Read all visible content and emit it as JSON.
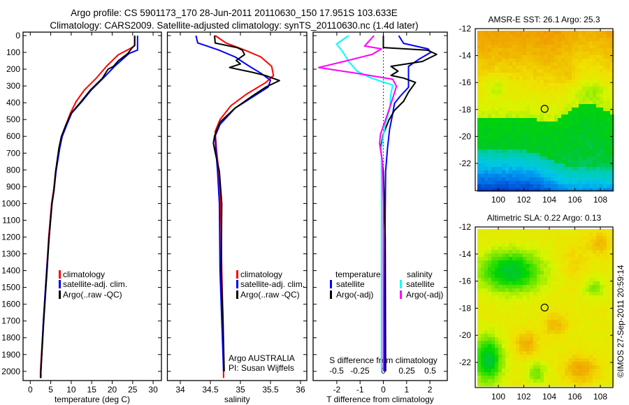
{
  "title": {
    "line1": "Argo profile: CS 5901173_170 28-Jun-2011 20110630_150 17.951S 103.633E",
    "line2": "Climatology: CARS2009. Satellite-adjusted climatology: synTS_20110630.nc (1.4d later)"
  },
  "footer": "©IMOS 27-Sep-2011 20:59:14",
  "colors": {
    "climatology": "#ff0000",
    "satellite": "#0000ff",
    "argo": "#000000",
    "sal_satellite": "#00ffff",
    "sal_argo": "#ff00ff"
  },
  "chart_data": [
    {
      "type": "line",
      "xlabel": "temperature (deg C)",
      "ylabel": "",
      "xlim": [
        -1.75,
        32.0
      ],
      "ylim": [
        2055,
        -20
      ],
      "xticks": [
        "0",
        "5",
        "10",
        "15",
        "20",
        "25",
        "30"
      ],
      "yticks": [
        "0",
        "100",
        "200",
        "300",
        "400",
        "500",
        "600",
        "700",
        "800",
        "900",
        "1000",
        "1100",
        "1200",
        "1300",
        "1400",
        "1500",
        "1600",
        "1700",
        "1800",
        "1900",
        "2000"
      ],
      "legend": [
        "climatology",
        "satellite-adj. clim.",
        "Argo(..raw -QC)"
      ],
      "series": [
        {
          "name": "climatology",
          "color": "#ff0000",
          "points": [
            [
              0,
              25.5
            ],
            [
              60,
              25.5
            ],
            [
              72,
              24.8
            ],
            [
              114,
              21.5
            ],
            [
              183,
              18.6
            ],
            [
              254,
              16.1
            ],
            [
              324,
              13.2
            ],
            [
              393,
              11.2
            ],
            [
              462,
              9.8
            ],
            [
              532,
              8.7
            ],
            [
              601,
              7.7
            ],
            [
              670,
              7.1
            ],
            [
              809,
              6.2
            ],
            [
              920,
              5.7
            ],
            [
              1000,
              5.2
            ],
            [
              1200,
              4.5
            ],
            [
              1400,
              4.0
            ],
            [
              1700,
              3.2
            ],
            [
              2000,
              2.5
            ],
            [
              2040,
              2.5
            ]
          ]
        },
        {
          "name": "satellite-adj. clim.",
          "color": "#0000ff",
          "points": [
            [
              0,
              26.2
            ],
            [
              86,
              26.2
            ],
            [
              107,
              24.1
            ],
            [
              183,
              20.6
            ],
            [
              254,
              17.8
            ],
            [
              324,
              14.9
            ],
            [
              393,
              12.6
            ],
            [
              462,
              10.1
            ],
            [
              532,
              8.9
            ],
            [
              601,
              7.8
            ],
            [
              670,
              7.2
            ],
            [
              809,
              6.3
            ],
            [
              920,
              5.8
            ],
            [
              1000,
              5.3
            ],
            [
              1200,
              4.6
            ],
            [
              1400,
              4.0
            ],
            [
              1700,
              3.2
            ],
            [
              2000,
              2.6
            ],
            [
              2040,
              2.5
            ]
          ]
        },
        {
          "name": "Argo(..raw -QC)",
          "color": "#000000",
          "points": [
            [
              0,
              25.5
            ],
            [
              58,
              25.5
            ],
            [
              72,
              24.9
            ],
            [
              107,
              23.8
            ],
            [
              150,
              21.5
            ],
            [
              183,
              20.3
            ],
            [
              200,
              19.0
            ],
            [
              254,
              17.6
            ],
            [
              324,
              14.7
            ],
            [
              393,
              12.4
            ],
            [
              462,
              10.0
            ],
            [
              532,
              8.7
            ],
            [
              601,
              7.6
            ],
            [
              670,
              7.0
            ],
            [
              809,
              6.2
            ],
            [
              920,
              5.8
            ],
            [
              1000,
              5.3
            ],
            [
              1200,
              4.6
            ],
            [
              1400,
              4.1
            ],
            [
              1700,
              3.3
            ],
            [
              2000,
              2.6
            ],
            [
              2040,
              2.6
            ]
          ]
        }
      ]
    },
    {
      "type": "line",
      "xlabel": "salinity",
      "xlim": [
        33.785,
        36.105
      ],
      "ylim": [
        2055,
        -20
      ],
      "xticks": [
        "34",
        "34.5",
        "35",
        "35.5",
        "36"
      ],
      "legend": [
        "climatology",
        "satellite-adj. clim.",
        "Argo(..raw -QC)"
      ],
      "annotation": [
        "Argo AUSTRALIA",
        "PI: Susan Wijffels"
      ],
      "series": [
        {
          "name": "climatology",
          "color": "#ff0000",
          "points": [
            [
              0,
              34.58
            ],
            [
              44,
              34.76
            ],
            [
              86,
              35.07
            ],
            [
              127,
              35.34
            ],
            [
              183,
              35.52
            ],
            [
              238,
              35.55
            ],
            [
              280,
              35.42
            ],
            [
              349,
              35.1
            ],
            [
              418,
              34.84
            ],
            [
              501,
              34.66
            ],
            [
              571,
              34.58
            ],
            [
              670,
              34.6
            ],
            [
              809,
              34.64
            ],
            [
              1000,
              34.67
            ],
            [
              1400,
              34.69
            ],
            [
              1700,
              34.71
            ],
            [
              2040,
              34.72
            ]
          ]
        },
        {
          "name": "satellite-adj. clim.",
          "color": "#0000ff",
          "points": [
            [
              0,
              34.26
            ],
            [
              44,
              34.29
            ],
            [
              58,
              34.41
            ],
            [
              86,
              34.64
            ],
            [
              127,
              34.91
            ],
            [
              183,
              35.15
            ],
            [
              224,
              35.34
            ],
            [
              266,
              35.5
            ],
            [
              307,
              35.46
            ],
            [
              362,
              35.22
            ],
            [
              432,
              34.91
            ],
            [
              529,
              34.66
            ],
            [
              598,
              34.58
            ],
            [
              670,
              34.59
            ],
            [
              809,
              34.62
            ],
            [
              1000,
              34.65
            ],
            [
              1400,
              34.66
            ],
            [
              1700,
              34.69
            ],
            [
              2000,
              34.72
            ]
          ]
        },
        {
          "name": "Argo(..raw -QC)",
          "color": "#000000",
          "points": [
            [
              0,
              34.57
            ],
            [
              44,
              34.58
            ],
            [
              72,
              34.95
            ],
            [
              86,
              35.03
            ],
            [
              113,
              35.07
            ],
            [
              148,
              34.93
            ],
            [
              169,
              35.0
            ],
            [
              190,
              34.82
            ],
            [
              218,
              35.19
            ],
            [
              238,
              35.42
            ],
            [
              268,
              35.65
            ],
            [
              307,
              35.42
            ],
            [
              362,
              35.19
            ],
            [
              432,
              34.91
            ],
            [
              515,
              34.66
            ],
            [
              598,
              34.57
            ],
            [
              640,
              34.55
            ],
            [
              696,
              34.58
            ],
            [
              809,
              34.65
            ],
            [
              1000,
              34.69
            ],
            [
              1400,
              34.68
            ],
            [
              1700,
              34.71
            ],
            [
              2000,
              34.73
            ]
          ]
        }
      ]
    },
    {
      "type": "line",
      "xlabel": "T difference from climatology",
      "xlabel2": "S difference from climatology",
      "xlim": [
        -3.02,
        2.75
      ],
      "xlim_s": [
        -0.75,
        0.69
      ],
      "ylim": [
        2055,
        -20
      ],
      "xticks": [
        "-2",
        "-1",
        "0",
        "1",
        "2"
      ],
      "xticks_s": [
        "-0.5",
        "-0.25",
        "0",
        "0.25",
        "0.5"
      ],
      "legend": {
        "temperature_header": "temperature",
        "salinity_header": "salinity",
        "t_sat": "satellite",
        "t_argo": "Argo(-adj)",
        "s_sat": "satellite",
        "s_argo": "Argo(-adj)"
      },
      "series": [
        {
          "name": "temperature satellite",
          "axis": "T",
          "color": "#0000ff",
          "points": [
            [
              0,
              0.66
            ],
            [
              46,
              0.87
            ],
            [
              79,
              1.92
            ],
            [
              100,
              2.04
            ],
            [
              141,
              1.53
            ],
            [
              183,
              1.08
            ],
            [
              253,
              1.08
            ],
            [
              308,
              1.08
            ],
            [
              362,
              0.72
            ],
            [
              403,
              0.48
            ],
            [
              474,
              0.39
            ],
            [
              557,
              0.27
            ],
            [
              669,
              0.18
            ],
            [
              807,
              0.1
            ],
            [
              1200,
              0.07
            ],
            [
              2000,
              0.05
            ]
          ]
        },
        {
          "name": "temperature Argo(-adj)",
          "axis": "T",
          "color": "#000000",
          "points": [
            [
              0,
              0.0
            ],
            [
              71,
              0.0
            ],
            [
              87,
              1.9
            ],
            [
              112,
              2.29
            ],
            [
              154,
              1.68
            ],
            [
              183,
              0.33
            ],
            [
              212,
              0.63
            ],
            [
              237,
              0.33
            ],
            [
              253,
              0.87
            ],
            [
              279,
              1.38
            ],
            [
              337,
              1.08
            ],
            [
              391,
              0.87
            ],
            [
              445,
              0.48
            ],
            [
              503,
              0.24
            ],
            [
              586,
              0.0
            ],
            [
              669,
              -0.12
            ],
            [
              807,
              0.0
            ],
            [
              1200,
              0.08
            ],
            [
              2000,
              0.1
            ]
          ]
        },
        {
          "name": "salinity satellite",
          "axis": "S",
          "color": "#00ffff",
          "points": [
            [
              0,
              -0.37
            ],
            [
              50,
              -0.5
            ],
            [
              100,
              -0.43
            ],
            [
              154,
              -0.37
            ],
            [
              212,
              -0.28
            ],
            [
              253,
              -0.13
            ],
            [
              295,
              0.1
            ],
            [
              350,
              0.08
            ],
            [
              433,
              0.07
            ],
            [
              530,
              0.02
            ],
            [
              669,
              -0.02
            ],
            [
              1000,
              -0.02
            ],
            [
              2000,
              -0.02
            ]
          ]
        },
        {
          "name": "salinity Argo(-adj)",
          "axis": "S",
          "color": "#ff00ff",
          "points": [
            [
              0,
              -0.1
            ],
            [
              62,
              -0.2
            ],
            [
              79,
              -0.02
            ],
            [
              112,
              -0.12
            ],
            [
              154,
              -0.42
            ],
            [
              190,
              -0.69
            ],
            [
              225,
              -0.28
            ],
            [
              260,
              0.1
            ],
            [
              302,
              0.14
            ],
            [
              391,
              0.09
            ],
            [
              474,
              0.04
            ],
            [
              586,
              -0.03
            ],
            [
              642,
              -0.04
            ],
            [
              752,
              -0.01
            ],
            [
              1000,
              0.0
            ],
            [
              2000,
              0.0
            ]
          ]
        }
      ]
    },
    {
      "type": "heatmap",
      "title": "AMSR-E SST: 26.1 Argo: 25.3",
      "xlim": [
        98.2,
        109.0
      ],
      "ylim": [
        -24.0,
        -12
      ],
      "xticks": [
        "100",
        "102",
        "104",
        "106",
        "108"
      ],
      "yticks": [
        "-12",
        "-14",
        "-16",
        "-18",
        "-20",
        "-22"
      ],
      "marker": {
        "lon": 103.633,
        "lat": -17.951
      }
    },
    {
      "type": "heatmap",
      "title": "Altimetric SLA: 0.22 Argo: 0.13",
      "xlim": [
        98.2,
        109.0
      ],
      "ylim": [
        -23.86,
        -12
      ],
      "xticks": [
        "100",
        "102",
        "104",
        "106",
        "108"
      ],
      "yticks": [
        "-12",
        "-14",
        "-16",
        "-18",
        "-20",
        "-22"
      ],
      "marker": {
        "lon": 103.633,
        "lat": -17.951
      }
    }
  ]
}
